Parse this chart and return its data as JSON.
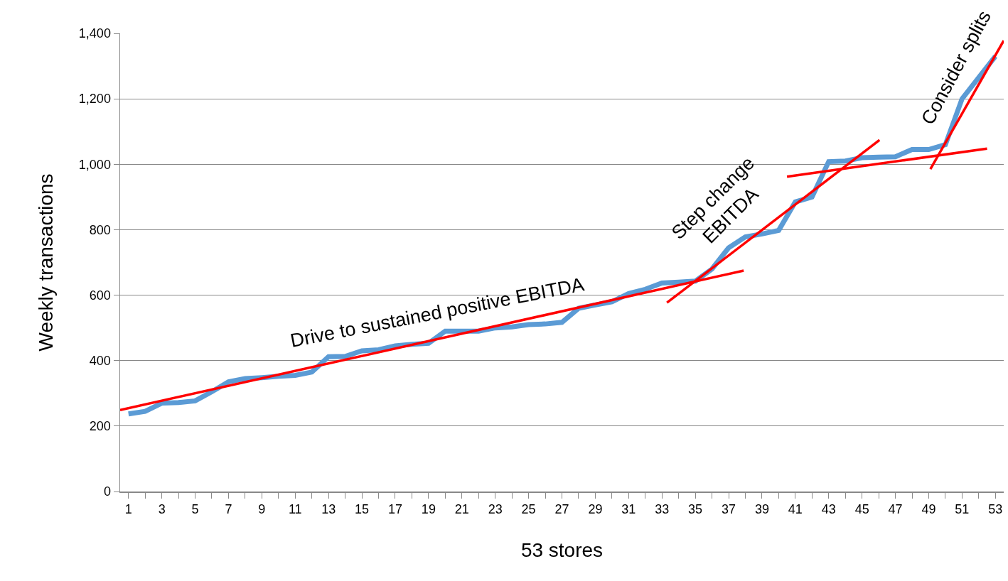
{
  "chart_data": {
    "type": "line",
    "xlabel": "53 stores",
    "ylabel": "Weekly transactions",
    "x": [
      1,
      2,
      3,
      4,
      5,
      6,
      7,
      8,
      9,
      10,
      11,
      12,
      13,
      14,
      15,
      16,
      17,
      18,
      19,
      20,
      21,
      22,
      23,
      24,
      25,
      26,
      27,
      28,
      29,
      30,
      31,
      32,
      33,
      34,
      35,
      36,
      37,
      38,
      39,
      40,
      41,
      42,
      43,
      44,
      45,
      46,
      47,
      48,
      49,
      50,
      51,
      52,
      53
    ],
    "series": [
      {
        "color": "#5b9bd5",
        "values": [
          237,
          245,
          270,
          272,
          277,
          305,
          335,
          345,
          348,
          352,
          355,
          365,
          412,
          413,
          430,
          433,
          445,
          450,
          453,
          490,
          490,
          490,
          500,
          503,
          510,
          512,
          517,
          560,
          570,
          580,
          605,
          618,
          637,
          640,
          643,
          680,
          745,
          778,
          787,
          798,
          885,
          900,
          1008,
          1010,
          1020,
          1022,
          1023,
          1045,
          1045,
          1060,
          1200,
          1265,
          1330
        ]
      },
      {
        "type": "line",
        "color": "#ff0000",
        "x": [
          0.5,
          37.9
        ],
        "values": [
          249,
          675
        ]
      },
      {
        "type": "line",
        "color": "#ff0000",
        "x": [
          33.3,
          46.05
        ],
        "values": [
          577,
          1074
        ]
      },
      {
        "type": "line",
        "color": "#ff0000",
        "x": [
          40.5,
          52.5
        ],
        "values": [
          962,
          1048
        ]
      },
      {
        "type": "line",
        "color": "#ff0000",
        "x": [
          49.1,
          53.5
        ],
        "values": [
          985,
          1378
        ]
      }
    ],
    "xlim": [
      0.5,
      53.5
    ],
    "xticks": [
      1,
      {
        "value": 2,
        "label": null
      },
      3,
      {
        "value": 4,
        "label": null
      },
      5,
      {
        "value": 6,
        "label": null
      },
      7,
      {
        "value": 8,
        "label": null
      },
      9,
      {
        "value": 10,
        "label": null
      },
      11,
      {
        "value": 12,
        "label": null
      },
      13,
      {
        "value": 14,
        "label": null
      },
      15,
      {
        "value": 16,
        "label": null
      },
      17,
      {
        "value": 18,
        "label": null
      },
      19,
      {
        "value": 20,
        "label": null
      },
      21,
      {
        "value": 22,
        "label": null
      },
      23,
      {
        "value": 24,
        "label": null
      },
      25,
      {
        "value": 26,
        "label": null
      },
      27,
      {
        "value": 28,
        "label": null
      },
      29,
      {
        "value": 30,
        "label": null
      },
      31,
      {
        "value": 32,
        "label": null
      },
      33,
      {
        "value": 34,
        "label": null
      },
      35,
      {
        "value": 36,
        "label": null
      },
      37,
      {
        "value": 38,
        "label": null
      },
      39,
      {
        "value": 40,
        "label": null
      },
      41,
      {
        "value": 42,
        "label": null
      },
      43,
      {
        "value": 44,
        "label": null
      },
      45,
      {
        "value": 46,
        "label": null
      },
      47,
      {
        "value": 48,
        "label": null
      },
      49,
      {
        "value": 50,
        "label": null
      },
      51,
      {
        "value": 52,
        "label": null
      },
      53
    ],
    "ylim": [
      0,
      1400
    ],
    "yticks": [
      0,
      {
        "value": 200,
        "label": "200"
      },
      {
        "value": 400,
        "label": "400"
      },
      {
        "value": 600,
        "label": "600"
      },
      {
        "value": 800,
        "label": "800"
      },
      {
        "value": 1000,
        "label": "1,000"
      },
      {
        "value": 1200,
        "label": "1,200"
      },
      {
        "value": 1400,
        "label": "1,400"
      }
    ],
    "grid": "y",
    "marker": "none",
    "line_style": "solid",
    "annotations": [
      "Drive to sustained positive EBITDA",
      "Step change\nEBITDA",
      "Consider splits"
    ]
  }
}
